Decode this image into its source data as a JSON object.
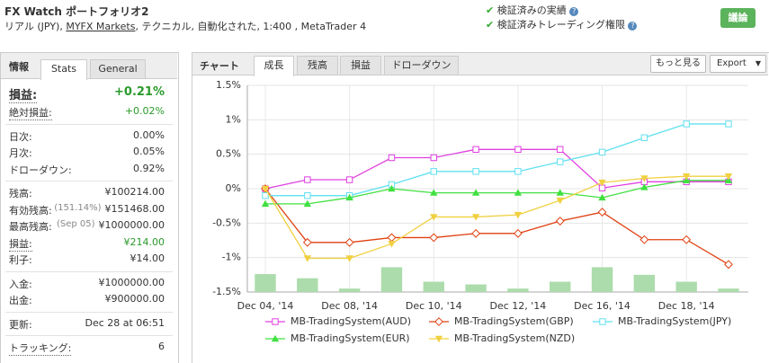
{
  "header": {
    "title": "FX Watch ポートフォリオ2",
    "subtitle_parts": [
      "リアル (JPY), ",
      "MYFX Markets",
      ", テクニカル, 自動化された, 1:400 , MetaTrader 4"
    ],
    "badges": [
      "検証済みの実績",
      "検証済みトレーディング権限"
    ],
    "button": "議論"
  },
  "stats_panel": {
    "heading": "情報",
    "tabs": [
      "Stats",
      "General"
    ],
    "groups": [
      [
        {
          "label": "損益:",
          "value": "+0.21%"
        },
        {
          "label": "絶対損益:",
          "value": "+0.02%"
        }
      ],
      [
        {
          "label": "日次:",
          "value": "0.00%"
        },
        {
          "label": "月次:",
          "value": "0.05%"
        },
        {
          "label": "ドローダウン:",
          "value": "0.92%"
        }
      ],
      [
        {
          "label": "残高:",
          "value": "¥100214.00"
        },
        {
          "label": "有効残高:",
          "note": "(151.14%)",
          "value": "¥151468.00"
        },
        {
          "label": "最高残高:",
          "note": "(Sep 05)",
          "value": "¥1000000.00"
        },
        {
          "label": "損益:",
          "value": "¥214.00"
        },
        {
          "label": "利子:",
          "value": "¥14.00"
        }
      ],
      [
        {
          "label": "入金:",
          "value": "¥1000000.00"
        },
        {
          "label": "出金:",
          "value": "¥900000.00"
        }
      ],
      [
        {
          "label": "更新:",
          "value": "Dec 28 at 06:51"
        }
      ],
      [
        {
          "label": "トラッキング:",
          "value": "6"
        }
      ]
    ]
  },
  "chart_panel": {
    "heading": "チャート",
    "tabs": [
      "成長",
      "残高",
      "損益",
      "ドローダウン"
    ],
    "buttons": [
      "もっと見る",
      "Export"
    ]
  },
  "chart_data": {
    "type": "line",
    "categories": [
      "Dec 04, '14",
      null,
      "Dec 08, '14",
      null,
      "Dec 10, '14",
      null,
      "Dec 12, '14",
      null,
      "Dec 16, '14",
      null,
      "Dec 18, '14",
      null
    ],
    "series": [
      {
        "name": "MB-TradingSystem(AUD)",
        "color": "#e040e0",
        "marker": "square",
        "values": [
          0,
          0.13,
          0.13,
          0.45,
          0.45,
          0.57,
          0.57,
          0.57,
          0.01,
          0.1,
          0.1,
          0.1
        ]
      },
      {
        "name": "MB-TradingSystem(GBP)",
        "color": "#e04010",
        "marker": "diamond",
        "values": [
          0,
          -0.78,
          -0.78,
          -0.71,
          -0.71,
          -0.65,
          -0.65,
          -0.47,
          -0.34,
          -0.74,
          -0.74,
          -1.1
        ]
      },
      {
        "name": "MB-TradingSystem(JPY)",
        "color": "#60e0f0",
        "marker": "square",
        "values": [
          -0.1,
          -0.1,
          -0.1,
          0.06,
          0.25,
          0.25,
          0.25,
          0.39,
          0.53,
          0.74,
          0.94,
          0.94
        ]
      },
      {
        "name": "MB-TradingSystem(EUR)",
        "color": "#40e040",
        "marker": "triangle",
        "values": [
          -0.22,
          -0.22,
          -0.13,
          0,
          -0.06,
          -0.06,
          -0.06,
          -0.06,
          -0.13,
          0.02,
          0.12,
          0.12
        ]
      },
      {
        "name": "MB-TradingSystem(NZD)",
        "color": "#f0d040",
        "marker": "triangle-down",
        "values": [
          0,
          -1.01,
          -1.01,
          -0.8,
          -0.41,
          -0.41,
          -0.38,
          -0.17,
          0.09,
          0.15,
          0.18,
          0.18
        ]
      },
      {
        "type": "bar",
        "color": "#acdcac",
        "values": [
          -1.24,
          -1.3,
          -1.45,
          -1.14,
          -1.35,
          -1.39,
          -1.45,
          -1.35,
          -1.14,
          -1.25,
          -1.35,
          -1.45
        ]
      }
    ],
    "ylim": [
      -1.5,
      1.5
    ],
    "yticks": [
      {
        "value": 1.5,
        "label": "1.5%"
      },
      {
        "value": 1,
        "label": "1%"
      },
      {
        "value": 0.5,
        "label": "0.5%"
      },
      {
        "value": 0,
        "label": "0%"
      },
      {
        "value": -0.5,
        "label": "-0.5%"
      },
      {
        "value": -1,
        "label": "-1%"
      },
      {
        "value": -1.5,
        "label": "-1.5%"
      }
    ],
    "grid": true,
    "legend": "bottom"
  }
}
